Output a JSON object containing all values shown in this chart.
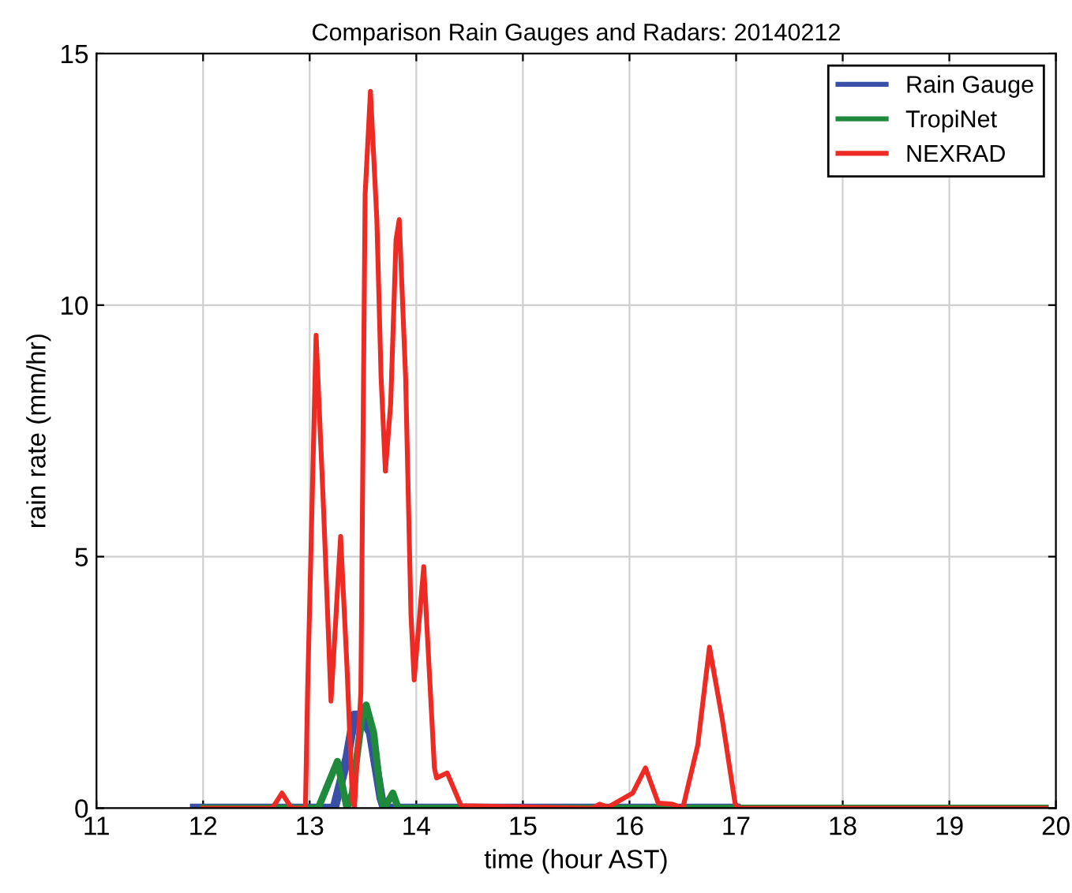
{
  "chart_data": {
    "type": "line",
    "title": "Comparison Rain Gauges and Radars: 20140212",
    "xlabel": "time (hour AST)",
    "ylabel": "rain rate (mm/hr)",
    "xlim": [
      11,
      20
    ],
    "ylim": [
      0,
      15
    ],
    "xticks": [
      11,
      12,
      13,
      14,
      15,
      16,
      17,
      18,
      19,
      20
    ],
    "yticks": [
      0,
      5,
      10,
      15
    ],
    "grid": true,
    "legend": "top right",
    "line_style": "solid",
    "marker": "none",
    "series": [
      {
        "name": "Rain Gauge",
        "color": "#3a4fa8",
        "x": [
          11.92,
          13.23,
          13.35,
          13.42,
          13.48,
          13.57,
          13.67,
          13.7,
          17.0
        ],
        "values": [
          0,
          0,
          1.0,
          1.85,
          1.85,
          1.5,
          0.2,
          0,
          0
        ]
      },
      {
        "name": "TropiNet",
        "color": "#1f8a3c",
        "x": [
          12.0,
          13.08,
          13.26,
          13.35,
          13.4,
          13.5,
          13.53,
          13.6,
          13.67,
          13.7,
          13.78,
          13.83,
          19.9
        ],
        "values": [
          0,
          0,
          0.93,
          0,
          0.3,
          1.97,
          2.05,
          1.5,
          0.2,
          0,
          0.3,
          0,
          0
        ]
      },
      {
        "name": "NEXRAD",
        "color": "#ee2a24",
        "x": [
          12.0,
          12.65,
          12.74,
          12.83,
          12.96,
          12.98,
          13.06,
          13.13,
          13.2,
          13.29,
          13.35,
          13.4,
          13.42,
          13.48,
          13.52,
          13.57,
          13.63,
          13.67,
          13.71,
          13.76,
          13.81,
          13.84,
          13.9,
          13.95,
          13.98,
          14.07,
          14.12,
          14.17,
          14.19,
          14.29,
          14.42,
          15.65,
          15.72,
          15.8,
          16.03,
          16.15,
          16.27,
          16.4,
          16.5,
          16.64,
          16.75,
          16.87,
          16.99,
          17.02,
          19.9
        ],
        "values": [
          0,
          0,
          0.3,
          0,
          0,
          2.3,
          9.4,
          5.95,
          2.13,
          5.4,
          2.8,
          0.2,
          0,
          2.3,
          12.2,
          14.25,
          11.7,
          8.55,
          6.7,
          8.05,
          11.3,
          11.7,
          8.55,
          3.85,
          2.55,
          4.8,
          2.8,
          0.8,
          0.6,
          0.7,
          0.05,
          0,
          0.08,
          0.02,
          0.3,
          0.8,
          0.1,
          0.08,
          0,
          1.25,
          3.2,
          1.77,
          0.1,
          0,
          0
        ]
      }
    ]
  }
}
